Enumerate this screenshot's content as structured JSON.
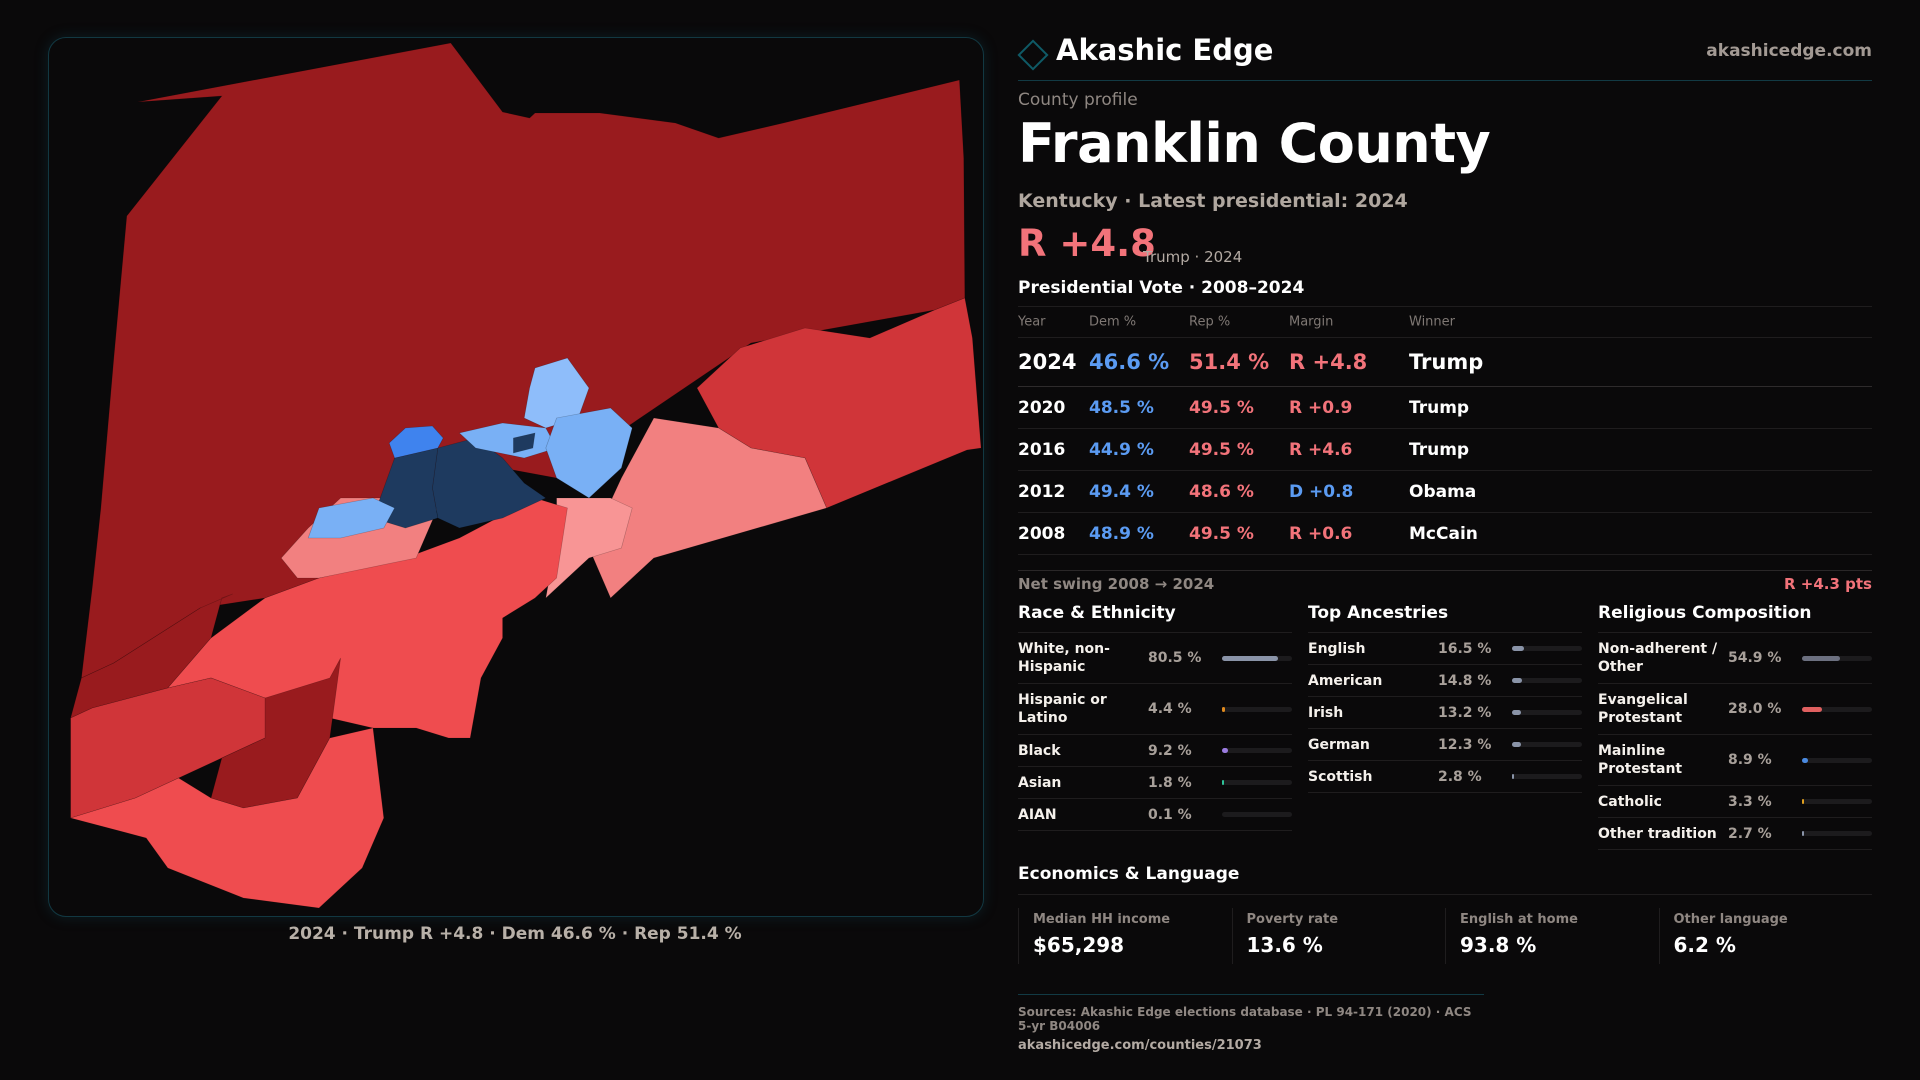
{
  "brand": {
    "name": "Akashic Edge",
    "url": "akashicedge.com",
    "accent": "#0f5a66"
  },
  "profile": {
    "eyebrow": "County profile",
    "title": "Franklin County",
    "subtitle": "Kentucky · Latest presidential: 2024",
    "headline_margin": "R +4.8",
    "headline_sub": "Trump · 2024"
  },
  "presidential": {
    "title": "Presidential Vote · 2008–2024",
    "headers": {
      "year": "Year",
      "dem": "Dem %",
      "rep": "Rep %",
      "margin": "Margin",
      "winner": "Winner"
    },
    "rows": [
      {
        "year": "2024",
        "dem": "46.6 %",
        "rep": "51.4 %",
        "margin": "R +4.8",
        "margin_party": "R",
        "winner": "Trump"
      },
      {
        "year": "2020",
        "dem": "48.5 %",
        "rep": "49.5 %",
        "margin": "R +0.9",
        "margin_party": "R",
        "winner": "Trump"
      },
      {
        "year": "2016",
        "dem": "44.9 %",
        "rep": "49.5 %",
        "margin": "R +4.6",
        "margin_party": "R",
        "winner": "Trump"
      },
      {
        "year": "2012",
        "dem": "49.4 %",
        "rep": "48.6 %",
        "margin": "D +0.8",
        "margin_party": "D",
        "winner": "Obama"
      },
      {
        "year": "2008",
        "dem": "48.9 %",
        "rep": "49.5 %",
        "margin": "R +0.6",
        "margin_party": "R",
        "winner": "McCain"
      }
    ],
    "net_swing_label": "Net swing 2008 → 2024",
    "net_swing_value": "R +4.3 pts"
  },
  "race": {
    "title": "Race & Ethnicity",
    "rows": [
      {
        "label": "White, non-Hispanic",
        "value": "80.5 %",
        "pct": 80.5,
        "color": "#8a94a8"
      },
      {
        "label": "Hispanic or Latino",
        "value": "4.4 %",
        "pct": 4.4,
        "color": "#e08a1e"
      },
      {
        "label": "Black",
        "value": "9.2 %",
        "pct": 9.2,
        "color": "#9b7ce0"
      },
      {
        "label": "Asian",
        "value": "1.8 %",
        "pct": 1.8,
        "color": "#2fc49a"
      },
      {
        "label": "AIAN",
        "value": "0.1 %",
        "pct": 0.1,
        "color": "#c06060"
      }
    ]
  },
  "ancestry": {
    "title": "Top Ancestries",
    "rows": [
      {
        "label": "English",
        "value": "16.5 %",
        "pct": 16.5,
        "color": "#8a94a8"
      },
      {
        "label": "American",
        "value": "14.8 %",
        "pct": 14.8,
        "color": "#8a94a8"
      },
      {
        "label": "Irish",
        "value": "13.2 %",
        "pct": 13.2,
        "color": "#8a94a8"
      },
      {
        "label": "German",
        "value": "12.3 %",
        "pct": 12.3,
        "color": "#8a94a8"
      },
      {
        "label": "Scottish",
        "value": "2.8 %",
        "pct": 2.8,
        "color": "#8a94a8"
      }
    ]
  },
  "religion": {
    "title": "Religious Composition",
    "rows": [
      {
        "label": "Non-adherent / Other",
        "value": "54.9 %",
        "pct": 54.9,
        "color": "#6c7080"
      },
      {
        "label": "Evangelical Protestant",
        "value": "28.0 %",
        "pct": 28.0,
        "color": "#e06060"
      },
      {
        "label": "Mainline Protestant",
        "value": "8.9 %",
        "pct": 8.9,
        "color": "#4a8ae0"
      },
      {
        "label": "Catholic",
        "value": "3.3 %",
        "pct": 3.3,
        "color": "#e0a020"
      },
      {
        "label": "Other tradition",
        "value": "2.7 %",
        "pct": 2.7,
        "color": "#8a94a8"
      }
    ]
  },
  "economics": {
    "title": "Economics & Language",
    "cells": [
      {
        "label": "Median HH income",
        "value": "$65,298"
      },
      {
        "label": "Poverty rate",
        "value": "13.6 %"
      },
      {
        "label": "English at home",
        "value": "93.8 %"
      },
      {
        "label": "Other language",
        "value": "6.2 %"
      }
    ]
  },
  "footer": {
    "sources": "Sources: Akashic Edge elections database · PL 94-171 (2020) · ACS 5-yr B04006",
    "url": "akashicedge.com/counties/21073"
  },
  "map": {
    "caption": "2024 · Trump R +4.8 · Dem 46.6 % · Rep 51.4 %",
    "colors": {
      "r_strong": "#991b1e",
      "r_mid": "#d03539",
      "r_lean": "#ef4c4f",
      "r_tilt": "#f28080",
      "r_light": "#f89595",
      "d_light": "#8ebdfa",
      "d_lean": "#79b0f5",
      "d_mid": "#3f83ee",
      "d_strong": "#1e3a5f"
    }
  }
}
